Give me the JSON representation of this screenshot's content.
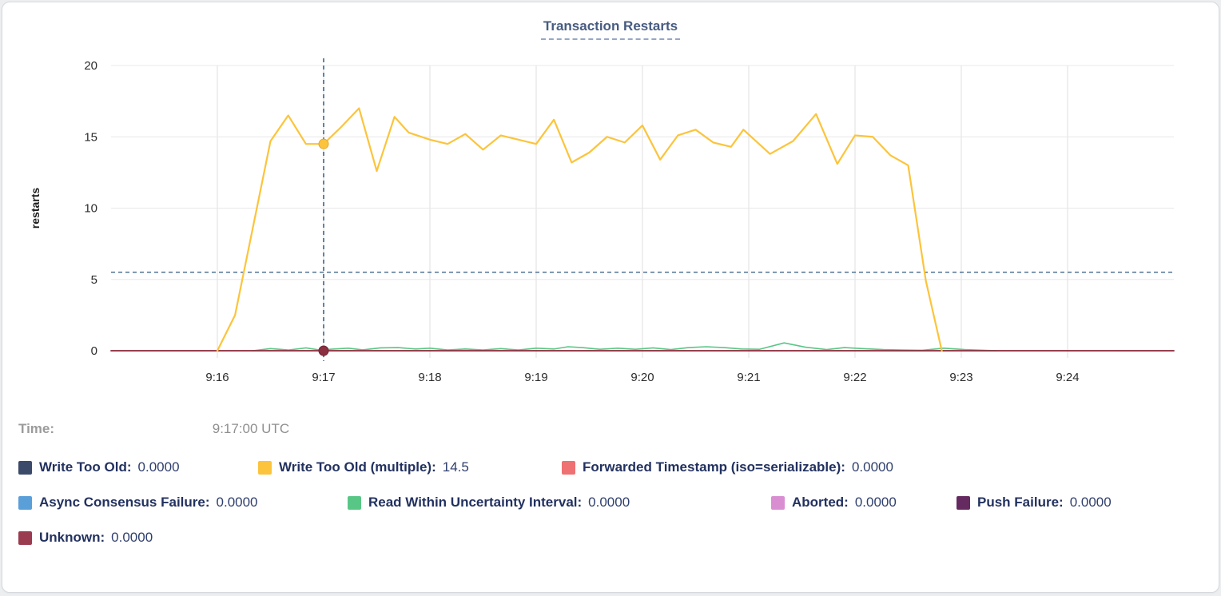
{
  "chart": {
    "title": "Transaction Restarts"
  },
  "time_row": {
    "label": "Time:",
    "value": "9:17:00 UTC"
  },
  "legend": {
    "rows": [
      [
        {
          "label": "Write Too Old:",
          "value": "0.0000",
          "color": "#3b4a68"
        },
        {
          "label": "Write Too Old (multiple):",
          "value": "14.5",
          "color": "#fcc43c"
        },
        {
          "label": "Forwarded Timestamp (iso=serializable):",
          "value": "0.0000",
          "color": "#ee7173"
        }
      ],
      [
        {
          "label": "Async Consensus Failure:",
          "value": "0.0000",
          "color": "#5b9fd9"
        },
        {
          "label": "Read Within Uncertainty Interval:",
          "value": "0.0000",
          "color": "#58c786"
        },
        {
          "label": "Aborted:",
          "value": "0.0000",
          "color": "#d98ed2"
        },
        {
          "label": "Push Failure:",
          "value": "0.0000",
          "color": "#652b61"
        }
      ],
      [
        {
          "label": "Unknown:",
          "value": "0.0000",
          "color": "#9a3b50"
        }
      ]
    ]
  },
  "chart_data": {
    "type": "line",
    "title": "Transaction Restarts",
    "xlabel": "",
    "ylabel": "restarts",
    "ylim": [
      0,
      20
    ],
    "y_ticks": [
      0,
      5,
      10,
      15,
      20
    ],
    "x_domain_seconds_after_9_15": [
      0,
      600
    ],
    "x_ticks": [
      {
        "t": 60,
        "label": "9:16"
      },
      {
        "t": 120,
        "label": "9:17"
      },
      {
        "t": 180,
        "label": "9:18"
      },
      {
        "t": 240,
        "label": "9:19"
      },
      {
        "t": 300,
        "label": "9:20"
      },
      {
        "t": 360,
        "label": "9:21"
      },
      {
        "t": 420,
        "label": "9:22"
      },
      {
        "t": 480,
        "label": "9:23"
      },
      {
        "t": 540,
        "label": "9:24"
      }
    ],
    "grid": true,
    "legend_position": "bottom",
    "grid_color": "#e8e8e8",
    "tick_text_color": "#2b2b2b",
    "crosshair_color": "#41658a",
    "series": [
      {
        "name": "Write Too Old",
        "color": "#3b4a68",
        "width": 1,
        "points": [
          [
            0,
            0
          ],
          [
            600,
            0
          ]
        ]
      },
      {
        "name": "Forwarded Timestamp (iso=serializable)",
        "color": "#ee7173",
        "width": 1.6,
        "points": [
          [
            0,
            0
          ],
          [
            600,
            0
          ]
        ]
      },
      {
        "name": "Async Consensus Failure",
        "color": "#5b9fd9",
        "width": 1,
        "points": [
          [
            0,
            0
          ],
          [
            600,
            0
          ]
        ]
      },
      {
        "name": "Aborted",
        "color": "#d98ed2",
        "width": 1,
        "points": [
          [
            0,
            0
          ],
          [
            600,
            0
          ]
        ]
      },
      {
        "name": "Push Failure",
        "color": "#652b61",
        "width": 1,
        "points": [
          [
            0,
            0
          ],
          [
            600,
            0
          ]
        ]
      },
      {
        "name": "Read Within Uncertainty Interval",
        "color": "#58c786",
        "width": 1.6,
        "points": [
          [
            80,
            0
          ],
          [
            90,
            0.15
          ],
          [
            100,
            0.05
          ],
          [
            110,
            0.2
          ],
          [
            118,
            0.05
          ],
          [
            126,
            0.12
          ],
          [
            134,
            0.18
          ],
          [
            142,
            0.06
          ],
          [
            152,
            0.2
          ],
          [
            162,
            0.22
          ],
          [
            172,
            0.12
          ],
          [
            180,
            0.18
          ],
          [
            190,
            0.05
          ],
          [
            200,
            0.12
          ],
          [
            210,
            0.05
          ],
          [
            220,
            0.15
          ],
          [
            230,
            0.05
          ],
          [
            240,
            0.18
          ],
          [
            250,
            0.12
          ],
          [
            258,
            0.28
          ],
          [
            266,
            0.22
          ],
          [
            276,
            0.1
          ],
          [
            286,
            0.18
          ],
          [
            296,
            0.1
          ],
          [
            306,
            0.2
          ],
          [
            316,
            0.08
          ],
          [
            326,
            0.22
          ],
          [
            336,
            0.28
          ],
          [
            346,
            0.22
          ],
          [
            356,
            0.12
          ],
          [
            366,
            0.1
          ],
          [
            380,
            0.55
          ],
          [
            392,
            0.25
          ],
          [
            404,
            0.08
          ],
          [
            414,
            0.22
          ],
          [
            424,
            0.15
          ],
          [
            436,
            0.08
          ],
          [
            446,
            0.05
          ],
          [
            458,
            0.03
          ],
          [
            470,
            0.18
          ],
          [
            482,
            0.08
          ],
          [
            500,
            0
          ]
        ]
      },
      {
        "name": "Unknown",
        "color": "#8b3040",
        "width": 1.8,
        "points": [
          [
            0,
            0
          ],
          [
            600,
            0
          ]
        ]
      },
      {
        "name": "Write Too Old (multiple)",
        "color": "#fcc43c",
        "width": 2.2,
        "points": [
          [
            60,
            0
          ],
          [
            70,
            2.5
          ],
          [
            80,
            8.6
          ],
          [
            90,
            14.7
          ],
          [
            100,
            16.5
          ],
          [
            110,
            14.5
          ],
          [
            120,
            14.5
          ],
          [
            130,
            15.7
          ],
          [
            140,
            17.0
          ],
          [
            150,
            12.6
          ],
          [
            160,
            16.4
          ],
          [
            168,
            15.3
          ],
          [
            180,
            14.8
          ],
          [
            190,
            14.5
          ],
          [
            200,
            15.2
          ],
          [
            210,
            14.1
          ],
          [
            220,
            15.1
          ],
          [
            230,
            14.8
          ],
          [
            240,
            14.5
          ],
          [
            250,
            16.2
          ],
          [
            260,
            13.2
          ],
          [
            270,
            13.9
          ],
          [
            280,
            15.0
          ],
          [
            290,
            14.6
          ],
          [
            300,
            15.8
          ],
          [
            310,
            13.4
          ],
          [
            320,
            15.1
          ],
          [
            330,
            15.5
          ],
          [
            340,
            14.6
          ],
          [
            350,
            14.3
          ],
          [
            357,
            15.5
          ],
          [
            372,
            13.8
          ],
          [
            385,
            14.7
          ],
          [
            398,
            16.6
          ],
          [
            410,
            13.1
          ],
          [
            420,
            15.1
          ],
          [
            430,
            15.0
          ],
          [
            440,
            13.7
          ],
          [
            450,
            13.0
          ],
          [
            460,
            4.9
          ],
          [
            469,
            0
          ]
        ]
      }
    ],
    "hover": {
      "t": 120,
      "time_label": "9:17:00 UTC",
      "crosshair_y_value": 5.5,
      "markers": [
        {
          "series": "Write Too Old (multiple)",
          "value": 14.5,
          "color": "#fcc43c",
          "ring": "#e3a825"
        },
        {
          "series": "Unknown",
          "value": 0,
          "color": "#8b3040",
          "ring": "#6e2433"
        }
      ]
    }
  }
}
